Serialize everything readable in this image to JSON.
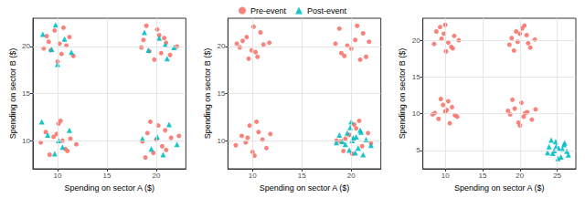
{
  "chart_data": [
    {
      "type": "scatter",
      "legend": "top",
      "grid": true,
      "x_label": "Spending on sector A ($)",
      "y_label": "Spending on sector B ($)",
      "xlim": [
        7.5,
        23
      ],
      "xticks": [
        10,
        15,
        20
      ],
      "ylim": [
        7,
        23
      ],
      "yticks": [
        10,
        15,
        20
      ],
      "series": [
        {
          "name": "Pre-event",
          "color": "#F8766D",
          "marker": "circle",
          "x": [
            9.1,
            10.4,
            11.2,
            8.6,
            10.0,
            9.7,
            10.9,
            11.6,
            9.3,
            10.6,
            8.9,
            10.2,
            19.3,
            20.8,
            21.4,
            18.7,
            20.1,
            19.8,
            21.0,
            22.1,
            19.0,
            20.5,
            18.5,
            20.3,
            9.6,
            10.8,
            8.8,
            11.3,
            10.1,
            9.2,
            10.5,
            11.9,
            8.3,
            10.3,
            9.9,
            11.0,
            20.6,
            19.1,
            21.5,
            19.7,
            20.2,
            18.6,
            21.0,
            22.3,
            19.4,
            20.9,
            18.9,
            20.0
          ],
          "y": [
            20.5,
            19.2,
            21.0,
            19.8,
            18.4,
            21.7,
            20.1,
            19.0,
            19.6,
            22.0,
            21.1,
            20.3,
            19.5,
            20.9,
            19.1,
            20.7,
            21.8,
            18.6,
            20.4,
            20.0,
            22.2,
            19.3,
            19.9,
            21.2,
            10.4,
            9.1,
            10.9,
            10.2,
            11.8,
            8.5,
            10.0,
            9.6,
            9.8,
            12.1,
            10.7,
            8.9,
            9.4,
            10.8,
            10.3,
            8.7,
            11.6,
            9.9,
            9.0,
            10.5,
            12.0,
            11.1,
            8.2,
            10.1
          ]
        },
        {
          "name": "Post-event",
          "color": "#00BFC4",
          "marker": "triangle",
          "x": [
            9.4,
            10.7,
            8.5,
            11.4,
            10.0,
            9.8,
            20.3,
            19.2,
            21.1,
            18.8,
            20.9,
            21.8,
            9.0,
            10.5,
            11.2,
            9.7,
            10.1,
            8.4,
            20.1,
            19.5,
            21.3,
            20.7,
            18.6,
            22.1
          ],
          "y": [
            19.7,
            20.8,
            21.3,
            19.4,
            18.1,
            22.3,
            20.9,
            19.6,
            18.7,
            21.5,
            20.2,
            19.9,
            10.6,
            9.3,
            11.1,
            8.6,
            10.0,
            12.0,
            10.4,
            9.1,
            11.7,
            8.5,
            10.2,
            9.6
          ]
        }
      ]
    },
    {
      "type": "scatter",
      "grid": true,
      "x_label": "Spending on sector A ($)",
      "y_label": "Spending on sector B ($)",
      "xlim": [
        7.5,
        23
      ],
      "xticks": [
        10,
        15,
        20
      ],
      "ylim": [
        7,
        23
      ],
      "yticks": [
        10,
        15,
        20
      ],
      "series": [
        {
          "name": "Pre-event",
          "color": "#F8766D",
          "marker": "circle",
          "x": [
            10.3,
            9.0,
            11.1,
            9.6,
            10.8,
            8.7,
            10.1,
            11.7,
            9.4,
            10.5,
            8.4,
            9.9,
            20.4,
            19.0,
            21.2,
            19.6,
            20.9,
            18.8,
            20.0,
            21.8,
            19.3,
            20.6,
            18.4,
            21.5,
            9.3,
            10.6,
            11.4,
            8.9,
            10.2,
            9.7,
            11.0,
            8.3,
            10.4,
            9.5,
            11.8,
            10.0,
            19.8,
            21.1,
            18.9,
            20.5,
            20.1,
            19.4,
            21.7,
            18.5,
            20.8,
            19.2,
            22.0,
            20.3
          ],
          "y": [
            19.4,
            20.6,
            20.2,
            18.7,
            21.5,
            19.9,
            22.1,
            20.4,
            21.0,
            18.9,
            20.3,
            19.6,
            20.7,
            19.3,
            21.4,
            20.1,
            18.6,
            21.9,
            19.8,
            20.5,
            19.0,
            22.2,
            20.3,
            18.9,
            9.8,
            10.9,
            9.2,
            10.5,
            8.4,
            11.6,
            10.1,
            9.5,
            12.0,
            10.3,
            10.7,
            8.8,
            10.6,
            9.4,
            9.9,
            11.3,
            8.6,
            10.2,
            10.8,
            10.0,
            12.1,
            8.9,
            9.7,
            11.7
          ]
        },
        {
          "name": "Post-event",
          "color": "#00BFC4",
          "marker": "triangle",
          "x": [
            20.2,
            19.4,
            21.0,
            20.7,
            18.8,
            19.9,
            21.5,
            20.4,
            19.1,
            20.0,
            22.0,
            19.6,
            20.9,
            18.5,
            21.2,
            20.5,
            19.8,
            20.1
          ],
          "y": [
            10.3,
            9.6,
            10.9,
            9.2,
            10.6,
            11.4,
            10.1,
            8.7,
            9.9,
            12.0,
            9.5,
            10.8,
            11.1,
            9.8,
            8.5,
            10.4,
            9.0,
            10.0
          ]
        }
      ]
    },
    {
      "type": "scatter",
      "grid": true,
      "x_label": "Spending on sector A ($)",
      "y_label": "Spending on sector B ($)",
      "xlim": [
        7,
        27.5
      ],
      "xticks": [
        10,
        15,
        20,
        25
      ],
      "ylim": [
        2.5,
        23
      ],
      "yticks": [
        5,
        10,
        15,
        20
      ],
      "series": [
        {
          "name": "Pre-event",
          "color": "#F8766D",
          "marker": "circle",
          "x": [
            9.5,
            10.8,
            8.8,
            11.2,
            10.1,
            9.3,
            10.4,
            11.8,
            8.5,
            10.0,
            9.8,
            11.0,
            19.7,
            20.9,
            18.9,
            21.4,
            20.3,
            19.2,
            20.6,
            22.0,
            18.6,
            20.0,
            19.5,
            21.1,
            10.2,
            9.1,
            11.3,
            9.7,
            10.6,
            8.6,
            10.9,
            11.6,
            9.4,
            10.0,
            8.3,
            10.4,
            20.5,
            19.3,
            21.0,
            19.8,
            20.2,
            18.7,
            21.6,
            22.1,
            19.0,
            20.7,
            18.4,
            20.0
          ],
          "y": [
            20.2,
            19.1,
            21.2,
            20.6,
            18.5,
            21.8,
            19.7,
            20.0,
            19.5,
            22.1,
            20.9,
            18.9,
            19.8,
            20.7,
            20.3,
            19.0,
            21.6,
            18.6,
            22.0,
            20.1,
            19.4,
            20.9,
            21.2,
            19.6,
            10.5,
            9.3,
            9.8,
            11.2,
            8.7,
            10.1,
            10.9,
            9.6,
            12.0,
            10.3,
            9.9,
            11.7,
            9.6,
            10.7,
            10.2,
            8.8,
            11.5,
            9.9,
            9.2,
            10.6,
            11.9,
            10.1,
            10.4,
            8.4
          ]
        },
        {
          "name": "Post-event",
          "color": "#00BFC4",
          "marker": "triangle",
          "x": [
            25.2,
            24.4,
            25.9,
            24.8,
            26.3,
            23.9,
            25.5,
            24.6,
            26.0,
            25.1,
            23.7,
            24.9,
            25.7,
            24.2,
            26.5
          ],
          "y": [
            5.3,
            4.6,
            5.8,
            6.2,
            4.9,
            5.5,
            4.1,
            5.0,
            6.0,
            3.9,
            4.7,
            5.6,
            5.2,
            6.4,
            4.4
          ]
        }
      ]
    }
  ]
}
